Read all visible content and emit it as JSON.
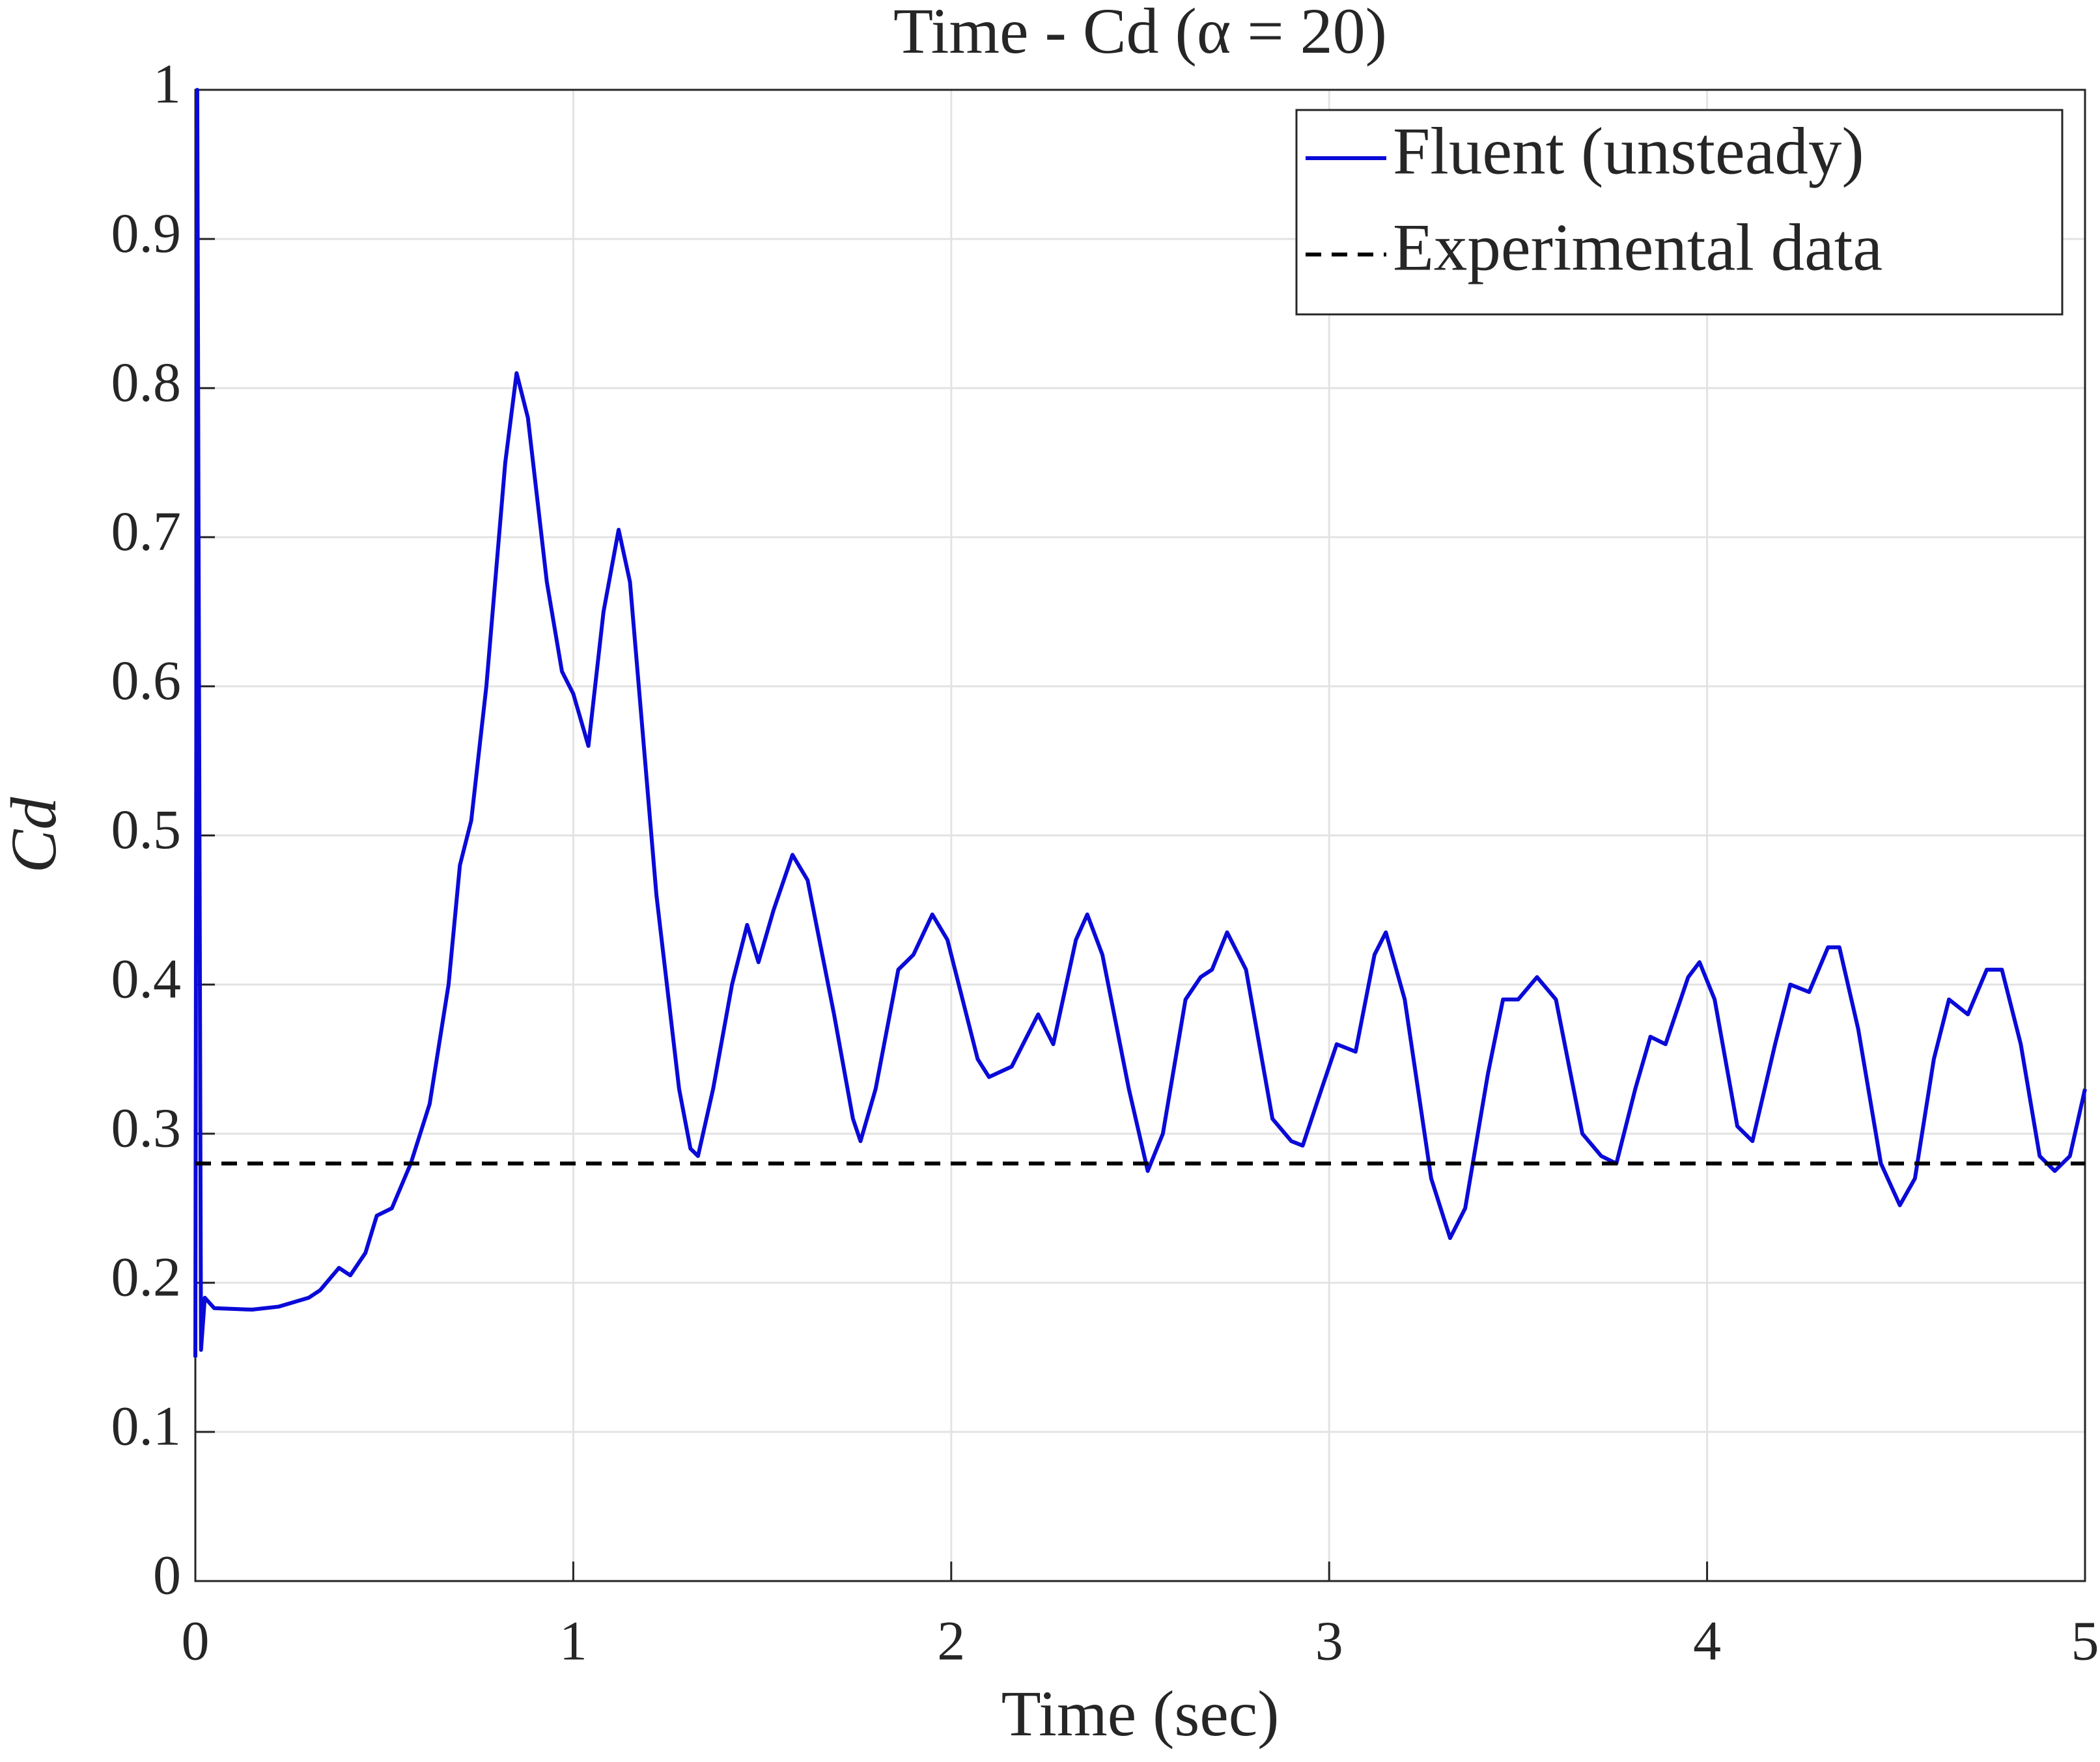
{
  "chart_data": {
    "type": "line",
    "title": "Time - Cd (α = 20)",
    "xlabel": "Time (sec)",
    "ylabel": "Cd",
    "xlim": [
      0,
      5
    ],
    "xticks": [
      0,
      1,
      2,
      3,
      4,
      5
    ],
    "ylim": [
      0,
      1
    ],
    "yticks": [
      0,
      0.1,
      0.2,
      0.3,
      0.4,
      0.5,
      0.6,
      0.7,
      0.8,
      0.9,
      1
    ],
    "grid": true,
    "legend": "upper right",
    "series": [
      {
        "name": "Fluent (unsteady)",
        "color": "#0a0ad8",
        "linestyle": "solid",
        "x": [
          0,
          0.005,
          0.015,
          0.025,
          0.05,
          0.15,
          0.22,
          0.3,
          0.33,
          0.38,
          0.41,
          0.45,
          0.48,
          0.52,
          0.57,
          0.62,
          0.67,
          0.7,
          0.73,
          0.77,
          0.82,
          0.85,
          0.88,
          0.93,
          0.97,
          1.0,
          1.04,
          1.08,
          1.12,
          1.15,
          1.22,
          1.28,
          1.31,
          1.33,
          1.37,
          1.42,
          1.46,
          1.49,
          1.53,
          1.58,
          1.62,
          1.69,
          1.74,
          1.76,
          1.8,
          1.86,
          1.9,
          1.95,
          1.99,
          2.07,
          2.1,
          2.16,
          2.2,
          2.23,
          2.27,
          2.33,
          2.36,
          2.4,
          2.47,
          2.52,
          2.56,
          2.62,
          2.66,
          2.69,
          2.73,
          2.78,
          2.85,
          2.9,
          2.93,
          2.98,
          3.02,
          3.07,
          3.12,
          3.15,
          3.2,
          3.27,
          3.32,
          3.36,
          3.42,
          3.46,
          3.5,
          3.55,
          3.6,
          3.67,
          3.72,
          3.76,
          3.81,
          3.85,
          3.89,
          3.95,
          3.98,
          4.02,
          4.08,
          4.12,
          4.18,
          4.22,
          4.27,
          4.32,
          4.35,
          4.4,
          4.46,
          4.51,
          4.55,
          4.6,
          4.64,
          4.69,
          4.74,
          4.78,
          4.83,
          4.88,
          4.92,
          4.96,
          5.0
        ],
        "values": [
          0.15,
          1.0,
          0.155,
          0.19,
          0.183,
          0.182,
          0.184,
          0.19,
          0.195,
          0.21,
          0.205,
          0.22,
          0.245,
          0.25,
          0.28,
          0.32,
          0.4,
          0.48,
          0.51,
          0.6,
          0.75,
          0.81,
          0.78,
          0.67,
          0.61,
          0.595,
          0.56,
          0.65,
          0.705,
          0.67,
          0.46,
          0.33,
          0.29,
          0.285,
          0.33,
          0.4,
          0.44,
          0.415,
          0.45,
          0.487,
          0.47,
          0.38,
          0.31,
          0.295,
          0.33,
          0.41,
          0.42,
          0.447,
          0.43,
          0.35,
          0.338,
          0.345,
          0.365,
          0.38,
          0.36,
          0.43,
          0.447,
          0.42,
          0.33,
          0.275,
          0.3,
          0.39,
          0.405,
          0.41,
          0.435,
          0.41,
          0.31,
          0.295,
          0.292,
          0.33,
          0.36,
          0.355,
          0.42,
          0.435,
          0.39,
          0.27,
          0.23,
          0.25,
          0.34,
          0.39,
          0.39,
          0.405,
          0.39,
          0.3,
          0.285,
          0.28,
          0.33,
          0.365,
          0.36,
          0.405,
          0.415,
          0.39,
          0.305,
          0.295,
          0.36,
          0.4,
          0.395,
          0.425,
          0.425,
          0.37,
          0.28,
          0.252,
          0.27,
          0.35,
          0.39,
          0.38,
          0.41,
          0.41,
          0.36,
          0.285,
          0.275,
          0.285,
          0.33
        ]
      },
      {
        "name": "Experimental data",
        "color": "#000000",
        "linestyle": "dashed",
        "x": [
          0,
          5
        ],
        "values": [
          0.28,
          0.28
        ]
      }
    ]
  }
}
